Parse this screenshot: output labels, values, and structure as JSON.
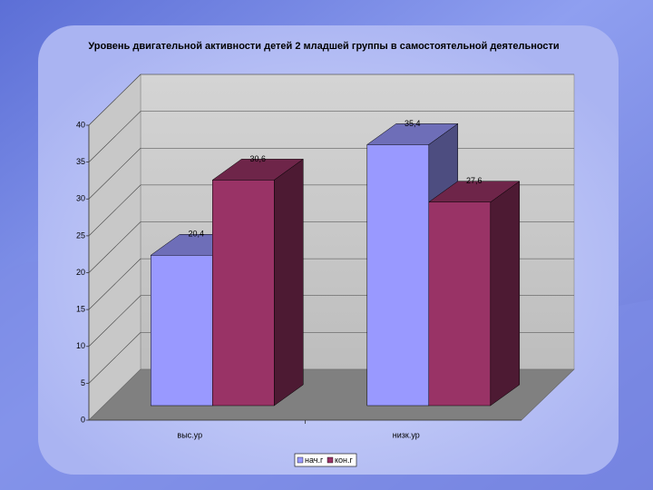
{
  "chart_data": {
    "type": "bar3d",
    "title": "Уровень двигательной активности детей 2 младшей группы в самостоятельной деятельности",
    "categories": [
      "выс.ур",
      "низк.ур"
    ],
    "series": [
      {
        "name": "нач.г",
        "color": "#9999ff",
        "values": [
          20.4,
          35.4
        ],
        "value_labels": [
          "20,4",
          "35,4"
        ]
      },
      {
        "name": "кон.г",
        "color": "#993366",
        "values": [
          30.6,
          27.6
        ],
        "value_labels": [
          "30,6",
          "27,6"
        ]
      }
    ],
    "ylim": [
      0,
      40
    ],
    "yticks": [
      0,
      5,
      10,
      15,
      20,
      25,
      30,
      35,
      40
    ],
    "grid": true,
    "legend": "bottom"
  }
}
